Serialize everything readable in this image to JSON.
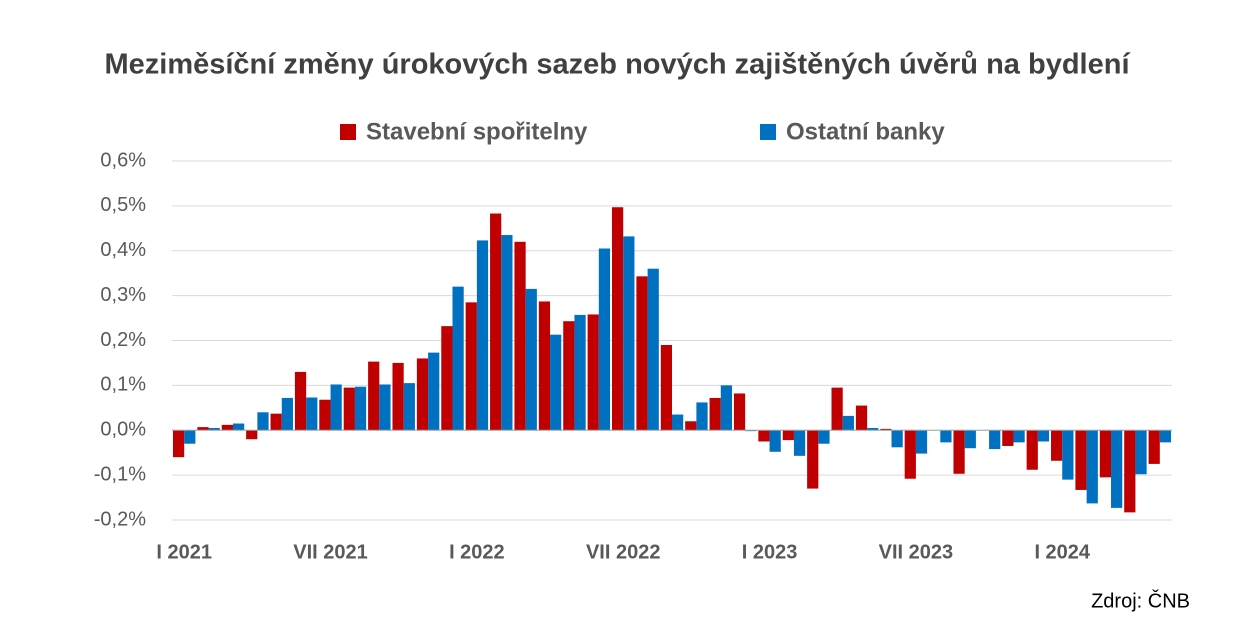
{
  "chart_data": {
    "type": "bar",
    "title": "Meziměsíční změny úrokových sazeb nových zajištěných úvěrů na bydlení",
    "source": "Zdroj: ČNB",
    "categories": [
      "I 2021",
      null,
      null,
      null,
      null,
      null,
      "VII 2021",
      null,
      null,
      null,
      null,
      null,
      "I 2022",
      null,
      null,
      null,
      null,
      null,
      "VII 2022",
      null,
      null,
      null,
      null,
      null,
      "I 2023",
      null,
      null,
      null,
      null,
      null,
      "VII 2023",
      null,
      null,
      null,
      null,
      null,
      "I 2024",
      null,
      null,
      null,
      null
    ],
    "series": [
      {
        "name": "Stavební spořitelny",
        "color": "#c00000",
        "values": [
          -0.06,
          0.007,
          0.012,
          -0.02,
          0.037,
          0.13,
          0.068,
          0.095,
          0.153,
          0.15,
          0.16,
          0.232,
          0.285,
          0.483,
          0.42,
          0.287,
          0.243,
          0.258,
          0.497,
          0.343,
          0.19,
          0.02,
          0.072,
          0.082,
          -0.025,
          -0.022,
          -0.13,
          0.095,
          0.055,
          0.003,
          -0.108,
          0,
          -0.097,
          0,
          -0.035,
          -0.088,
          -0.068,
          -0.133,
          -0.105,
          -0.183,
          -0.075
        ]
      },
      {
        "name": "Ostatní banky",
        "color": "#0070c0",
        "values": [
          -0.03,
          0.005,
          0.015,
          0.04,
          0.072,
          0.073,
          0.102,
          0.097,
          0.102,
          0.105,
          0.173,
          0.32,
          0.423,
          0.435,
          0.315,
          0.213,
          0.257,
          0.405,
          0.432,
          0.36,
          0.035,
          0.062,
          0.1,
          -0.002,
          -0.048,
          -0.057,
          -0.03,
          0.032,
          0.005,
          -0.038,
          -0.052,
          -0.027,
          -0.04,
          -0.042,
          -0.027,
          -0.025,
          -0.11,
          -0.163,
          -0.173,
          -0.098,
          -0.027
        ]
      }
    ],
    "ylim": [
      -0.2,
      0.6
    ],
    "yticks": [
      {
        "value": -0.2,
        "label": "-0,2%"
      },
      {
        "value": -0.1,
        "label": "-0,1%"
      },
      {
        "value": 0,
        "label": "0,0%"
      },
      {
        "value": 0.1,
        "label": "0,1%"
      },
      {
        "value": 0.2,
        "label": "0,2%"
      },
      {
        "value": 0.3,
        "label": "0,3%"
      },
      {
        "value": 0.4,
        "label": "0,4%"
      },
      {
        "value": 0.5,
        "label": "0,5%"
      },
      {
        "value": 0.6,
        "label": "0,6%"
      }
    ],
    "grid": true,
    "legend": "top"
  }
}
